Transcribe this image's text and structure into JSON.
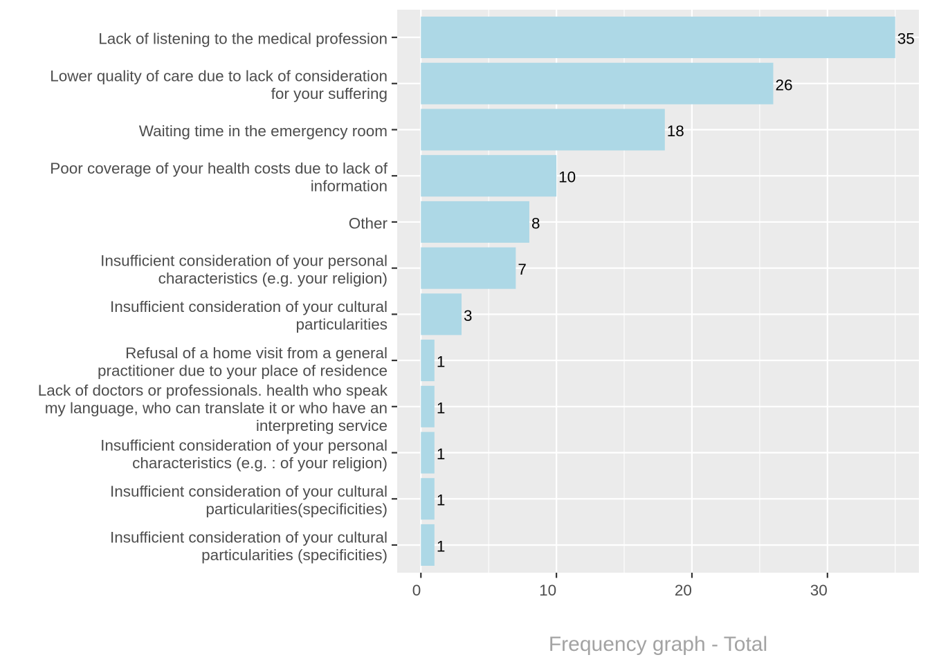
{
  "chart_data": {
    "type": "bar",
    "orientation": "horizontal",
    "title": "",
    "xlabel": "Frequency graph - Total",
    "ylabel": "",
    "categories": [
      "Lack of listening to the medical profession",
      "Lower quality of care due to lack of consideration for your suffering",
      "Waiting time in the emergency room",
      "Poor coverage of your health costs due to lack of information",
      "Other",
      "Insufficient consideration of your personal characteristics (e.g. your religion)",
      "Insufficient consideration of your cultural particularities",
      "Refusal of a home visit from a general practitioner due to your place of residence",
      "Lack of doctors or professionals. health who speak my language, who can translate it or who have an interpreting service",
      "Insufficient consideration of your personal characteristics (e.g. : of your religion)",
      "Insufficient consideration of your cultural particularities(specificities)",
      "Insufficient consideration of your cultural particularities (specificities)"
    ],
    "category_label_lines": [
      [
        "Lack of listening to the medical profession"
      ],
      [
        "Lower quality of care due to lack of consideration",
        "for your suffering"
      ],
      [
        "Waiting time in the emergency room"
      ],
      [
        "Poor coverage of your health costs due to lack of",
        "information"
      ],
      [
        "Other"
      ],
      [
        "Insufficient consideration of your personal",
        "characteristics (e.g. your religion)"
      ],
      [
        "Insufficient consideration of your cultural",
        "particularities"
      ],
      [
        "Refusal of a home visit from a general",
        "practitioner due to your place of residence"
      ],
      [
        "Lack of doctors or professionals. health who speak",
        "my language, who can translate it or who have an",
        "interpreting service"
      ],
      [
        "Insufficient consideration of your personal",
        "characteristics (e.g. : of your religion)"
      ],
      [
        "Insufficient consideration of your cultural",
        "particularities(specificities)"
      ],
      [
        "Insufficient consideration of your cultural",
        "particularities (specificities)"
      ]
    ],
    "values": [
      35,
      26,
      18,
      10,
      8,
      7,
      3,
      1,
      1,
      1,
      1,
      1
    ],
    "data_labels": true,
    "x_ticks": [
      0,
      10,
      20,
      30
    ],
    "xlim": [
      -1.75,
      36.75
    ],
    "grid": true,
    "legend": "none",
    "colors": {
      "bar": "#ADD8E6",
      "panel_background": "#EBEBEB",
      "gridline": "#FFFFFF",
      "axis_text": "#4D4D4D",
      "tick": "#333333",
      "value_label": "#000000",
      "axis_title": "#A3A3A3"
    }
  }
}
